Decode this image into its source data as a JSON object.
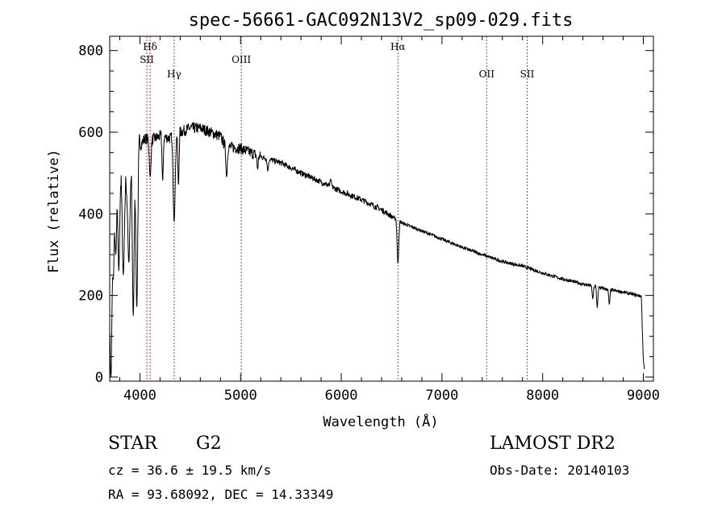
{
  "chart_data": {
    "type": "line",
    "title": "spec-56661-GAC092N13V2_sp09-029.fits",
    "xlabel": "Wavelength (Å)",
    "ylabel": "Flux (relative)",
    "xlim": [
      3700,
      9100
    ],
    "ylim": [
      -10,
      835
    ],
    "x_ticks": [
      4000,
      5000,
      6000,
      7000,
      8000,
      9000
    ],
    "x_tick_labels": [
      "4000",
      "5000",
      "6000",
      "7000",
      "8000",
      "9000"
    ],
    "y_ticks": [
      0,
      200,
      400,
      600,
      800
    ],
    "y_tick_labels": [
      "0",
      "200",
      "400",
      "600",
      "800"
    ],
    "grid": false,
    "series": [
      {
        "name": "spectrum",
        "color": "#000000",
        "continuum": [
          [
            3700,
            330
          ],
          [
            3760,
            440
          ],
          [
            3820,
            500
          ],
          [
            3870,
            470
          ],
          [
            3920,
            520
          ],
          [
            3980,
            560
          ],
          [
            4050,
            585
          ],
          [
            4100,
            580
          ],
          [
            4200,
            590
          ],
          [
            4300,
            585
          ],
          [
            4400,
            600
          ],
          [
            4500,
            610
          ],
          [
            4600,
            610
          ],
          [
            4700,
            600
          ],
          [
            4800,
            590
          ],
          [
            4850,
            565
          ],
          [
            5000,
            560
          ],
          [
            5100,
            550
          ],
          [
            5200,
            540
          ],
          [
            5400,
            525
          ],
          [
            5600,
            500
          ],
          [
            5800,
            478
          ],
          [
            6000,
            455
          ],
          [
            6200,
            435
          ],
          [
            6400,
            410
          ],
          [
            6600,
            378
          ],
          [
            6800,
            358
          ],
          [
            7000,
            338
          ],
          [
            7200,
            318
          ],
          [
            7400,
            300
          ],
          [
            7600,
            283
          ],
          [
            7800,
            272
          ],
          [
            8000,
            255
          ],
          [
            8200,
            240
          ],
          [
            8400,
            228
          ],
          [
            8600,
            217
          ],
          [
            8800,
            208
          ],
          [
            8980,
            198
          ],
          [
            9000,
            40
          ],
          [
            9010,
            20
          ]
        ],
        "absorption_lines": [
          [
            3712,
            0,
            12
          ],
          [
            3735,
            240,
            8
          ],
          [
            3760,
            300,
            8
          ],
          [
            3790,
            260,
            8
          ],
          [
            3835,
            250,
            10
          ],
          [
            3890,
            280,
            10
          ],
          [
            3934,
            150,
            9
          ],
          [
            3969,
            170,
            9
          ],
          [
            4102,
            490,
            8
          ],
          [
            4226,
            480,
            6
          ],
          [
            4340,
            380,
            10
          ],
          [
            4383,
            470,
            6
          ],
          [
            4861,
            490,
            7
          ],
          [
            5169,
            510,
            6
          ],
          [
            5270,
            505,
            6
          ],
          [
            5895,
            485,
            6
          ],
          [
            6563,
            278,
            8
          ],
          [
            8498,
            192,
            6
          ],
          [
            8542,
            170,
            6
          ],
          [
            8662,
            178,
            6
          ]
        ]
      }
    ],
    "annotations": [
      {
        "label": "Hδ",
        "x": 4101,
        "row": 1
      },
      {
        "label": "SII",
        "x": 4069,
        "row": 2
      },
      {
        "label": "Hγ",
        "x": 4340,
        "row": 3
      },
      {
        "label": "OIII",
        "x": 5007,
        "row": 2
      },
      {
        "label": "Hα",
        "x": 6563,
        "row": 1
      },
      {
        "label": "OII",
        "x": 7444,
        "row": 3
      },
      {
        "label": "SII",
        "x": 7846,
        "row": 3
      }
    ]
  },
  "info": {
    "object_type": "STAR",
    "subclass": "G2",
    "survey": "LAMOST DR2",
    "cz": "cz = 36.6 ± 19.5 km/s",
    "obs_date": "Obs-Date: 20140103",
    "coords": "RA =  93.68092, DEC =  14.33349"
  }
}
